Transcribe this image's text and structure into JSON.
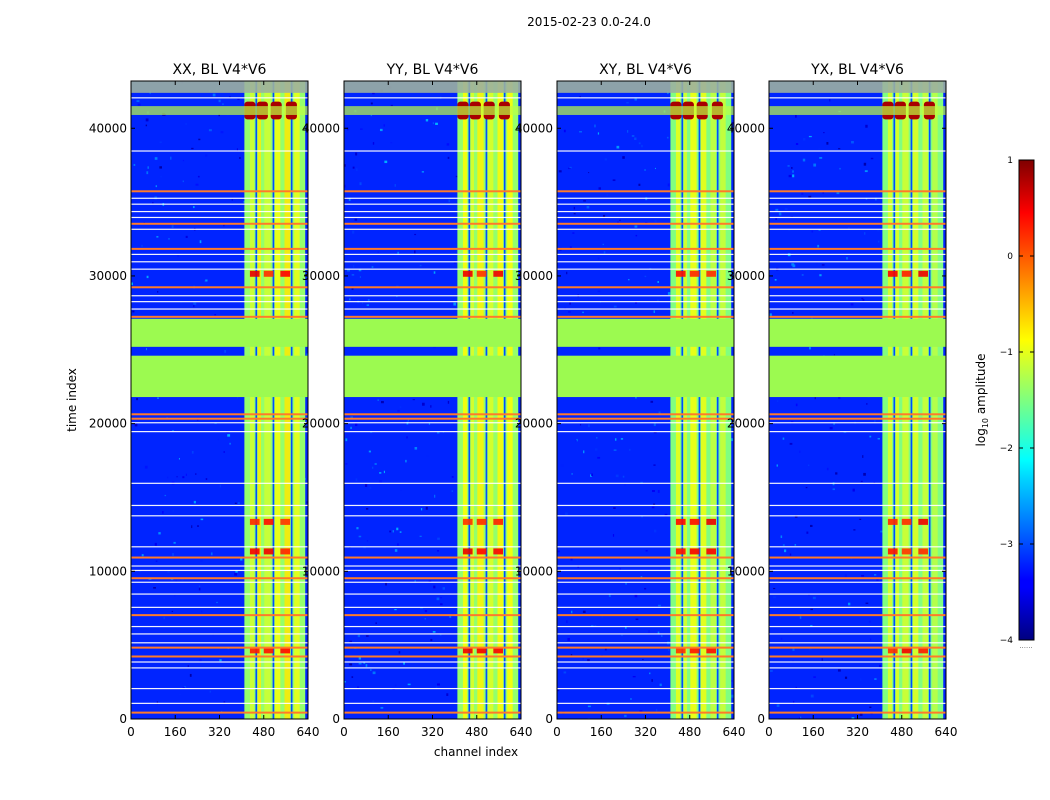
{
  "figure": {
    "suptitle": "2015-02-23 0.0-24.0",
    "ylabel": "time index",
    "xlabel": "channel index"
  },
  "colorbar": {
    "label_prefix": "log",
    "label_sub": "10",
    "label_suffix": " amplitude",
    "ticks": [
      "1",
      "0",
      "−1",
      "−2",
      "−3",
      "−4"
    ],
    "tick_values": [
      1,
      0,
      -1,
      -2,
      -3,
      -4
    ],
    "range": [
      -4,
      1
    ],
    "colormap": "jet",
    "under_text": "......"
  },
  "chart_data": [
    {
      "type": "heatmap",
      "title": "XX, BL V4*V6",
      "xlabel": "",
      "ylabel": "time index",
      "xlim": [
        0,
        640
      ],
      "ylim": [
        0,
        43200
      ],
      "xticks": [
        "0",
        "160",
        "320",
        "480",
        "640"
      ],
      "yticks": [
        "0",
        "10000",
        "20000",
        "30000",
        "40000"
      ],
      "xtick_values": [
        0,
        160,
        320,
        480,
        640
      ],
      "ytick_values": [
        0,
        10000,
        20000,
        30000,
        40000
      ],
      "values_log10": {
        "background": -3.2,
        "rfi_band_channels": [
          [
            410,
            630
          ]
        ],
        "rfi_band_level": -1.4,
        "flagged_value": -0.8,
        "peak_level": 0.8
      }
    },
    {
      "type": "heatmap",
      "title": "YY, BL V4*V6",
      "xlabel": "channel index",
      "ylabel": "",
      "xlim": [
        0,
        640
      ],
      "ylim": [
        0,
        43200
      ],
      "xticks": [
        "0",
        "160",
        "320",
        "480",
        "640"
      ],
      "yticks": [
        "0",
        "10000",
        "20000",
        "30000",
        "40000"
      ],
      "xtick_values": [
        0,
        160,
        320,
        480,
        640
      ],
      "ytick_values": [
        0,
        10000,
        20000,
        30000,
        40000
      ],
      "values_log10": {
        "background": -3.2,
        "rfi_band_channels": [
          [
            410,
            630
          ]
        ],
        "rfi_band_level": -1.4,
        "flagged_value": -0.8,
        "peak_level": 0.8
      }
    },
    {
      "type": "heatmap",
      "title": "XY, BL V4*V6",
      "xlabel": "",
      "ylabel": "",
      "xlim": [
        0,
        640
      ],
      "ylim": [
        0,
        43200
      ],
      "xticks": [
        "0",
        "160",
        "320",
        "480",
        "640"
      ],
      "yticks": [
        "0",
        "10000",
        "20000",
        "30000",
        "40000"
      ],
      "xtick_values": [
        0,
        160,
        320,
        480,
        640
      ],
      "ytick_values": [
        0,
        10000,
        20000,
        30000,
        40000
      ],
      "values_log10": {
        "background": -3.2,
        "rfi_band_channels": [
          [
            410,
            630
          ]
        ],
        "rfi_band_level": -1.5,
        "flagged_value": -0.8,
        "peak_level": 0.8
      }
    },
    {
      "type": "heatmap",
      "title": "YX, BL V4*V6",
      "xlabel": "",
      "ylabel": "",
      "xlim": [
        0,
        640
      ],
      "ylim": [
        0,
        43200
      ],
      "xticks": [
        "0",
        "160",
        "320",
        "480",
        "640"
      ],
      "yticks": [
        "0",
        "10000",
        "20000",
        "30000",
        "40000"
      ],
      "xtick_values": [
        0,
        160,
        320,
        480,
        640
      ],
      "ytick_values": [
        0,
        10000,
        20000,
        30000,
        40000
      ],
      "values_log10": {
        "background": -3.2,
        "rfi_band_channels": [
          [
            410,
            630
          ]
        ],
        "rfi_band_level": -1.5,
        "flagged_value": -0.8,
        "peak_level": 0.8
      }
    }
  ],
  "colors": {
    "background_blue": "#1d3fe6",
    "flag_green": "#9cfa50",
    "frame": "#000000",
    "text": "#000000"
  }
}
